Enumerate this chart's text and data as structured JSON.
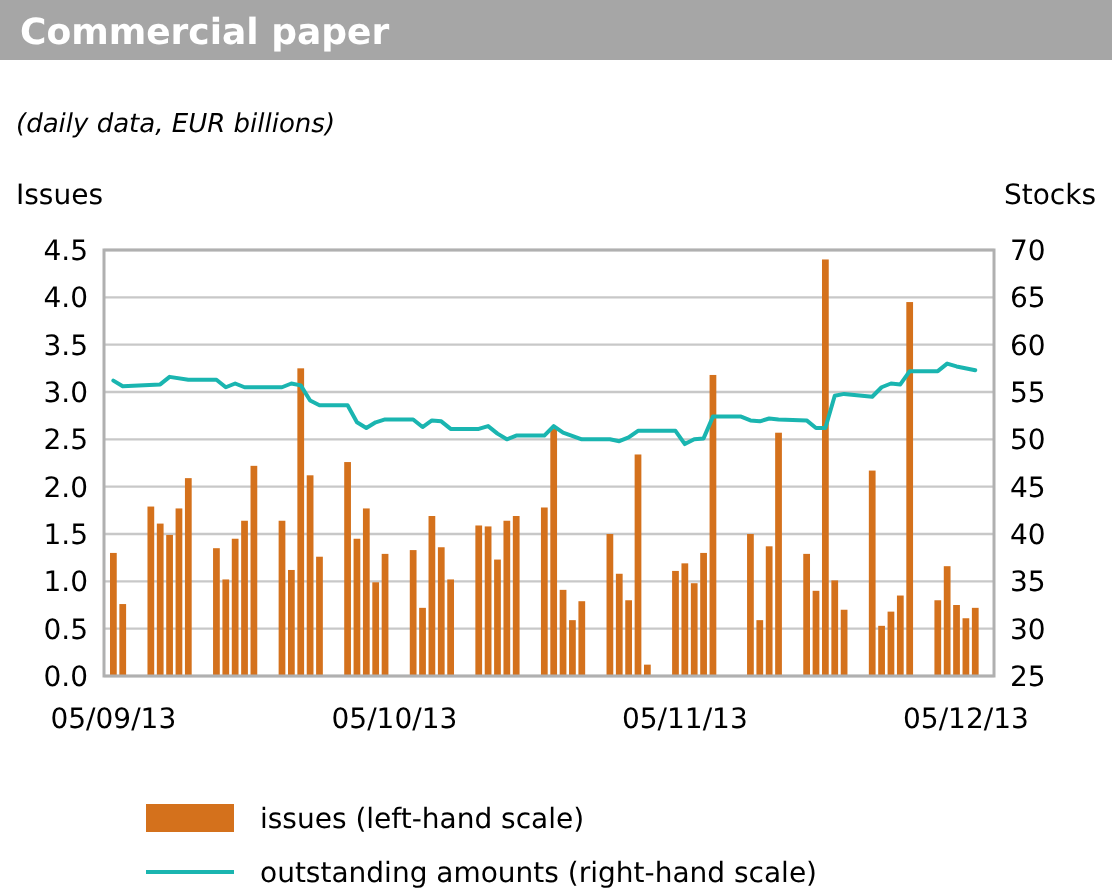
{
  "chart_data": {
    "type": "bar",
    "title": "Commercial paper",
    "subtitle": "(daily data, EUR billions)",
    "ylabel": "Issues",
    "y2label": "Stocks",
    "xlim": [
      "2013-09-04",
      "2013-12-08"
    ],
    "xticks": [
      {
        "value": "2013-09-05",
        "label": "05/09/13"
      },
      {
        "value": "2013-10-05",
        "label": "05/10/13"
      },
      {
        "value": "2013-11-05",
        "label": "05/11/13"
      },
      {
        "value": "2013-12-05",
        "label": "05/12/13"
      }
    ],
    "ylim": [
      0,
      4.5
    ],
    "yticks": [
      {
        "value": 0,
        "label": "0.0"
      },
      {
        "value": 0.5,
        "label": "0.5"
      },
      {
        "value": 1,
        "label": "1.0"
      },
      {
        "value": 1.5,
        "label": "1.5"
      },
      {
        "value": 2,
        "label": "2.0"
      },
      {
        "value": 2.5,
        "label": "2.5"
      },
      {
        "value": 3,
        "label": "3.0"
      },
      {
        "value": 3.5,
        "label": "3.5"
      },
      {
        "value": 4,
        "label": "4.0"
      },
      {
        "value": 4.5,
        "label": "4.5"
      }
    ],
    "y2lim": [
      25,
      70
    ],
    "y2ticks": [
      25,
      30,
      35,
      40,
      45,
      50,
      55,
      60,
      65,
      70
    ],
    "grid": "y",
    "legend": "bottom",
    "series": [
      {
        "name": "issues (left-hand scale)",
        "color": "#d4711c",
        "x": [
          "2013-09-05",
          "2013-09-06",
          "2013-09-09",
          "2013-09-10",
          "2013-09-11",
          "2013-09-12",
          "2013-09-13",
          "2013-09-16",
          "2013-09-17",
          "2013-09-18",
          "2013-09-19",
          "2013-09-20",
          "2013-09-23",
          "2013-09-24",
          "2013-09-25",
          "2013-09-26",
          "2013-09-27",
          "2013-09-30",
          "2013-10-01",
          "2013-10-02",
          "2013-10-03",
          "2013-10-04",
          "2013-10-07",
          "2013-10-08",
          "2013-10-09",
          "2013-10-10",
          "2013-10-11",
          "2013-10-14",
          "2013-10-15",
          "2013-10-16",
          "2013-10-17",
          "2013-10-18",
          "2013-10-21",
          "2013-10-22",
          "2013-10-23",
          "2013-10-24",
          "2013-10-25",
          "2013-10-28",
          "2013-10-29",
          "2013-10-30",
          "2013-10-31",
          "2013-11-01",
          "2013-11-04",
          "2013-11-05",
          "2013-11-06",
          "2013-11-07",
          "2013-11-08",
          "2013-11-12",
          "2013-11-13",
          "2013-11-14",
          "2013-11-15",
          "2013-11-18",
          "2013-11-19",
          "2013-11-20",
          "2013-11-21",
          "2013-11-22",
          "2013-11-25",
          "2013-11-26",
          "2013-11-27",
          "2013-11-28",
          "2013-11-29",
          "2013-12-02",
          "2013-12-03",
          "2013-12-04",
          "2013-12-05",
          "2013-12-06"
        ],
        "values": [
          1.3,
          0.76,
          1.79,
          1.61,
          1.49,
          1.77,
          2.09,
          1.35,
          1.02,
          1.45,
          1.64,
          2.22,
          1.64,
          1.12,
          3.25,
          2.12,
          1.26,
          2.26,
          1.45,
          1.77,
          0.99,
          1.29,
          1.33,
          0.72,
          1.69,
          1.36,
          1.02,
          1.59,
          1.58,
          1.23,
          1.64,
          1.69,
          1.78,
          2.61,
          0.91,
          0.59,
          0.79,
          1.5,
          1.08,
          0.8,
          2.34,
          0.12,
          1.11,
          1.19,
          0.98,
          1.3,
          3.18,
          1.5,
          0.59,
          1.37,
          2.57,
          1.29,
          0.9,
          4.4,
          1.01,
          0.7,
          2.17,
          0.53,
          0.68,
          0.85,
          3.95,
          0.8,
          1.16,
          0.75,
          0.61,
          0.72
        ]
      },
      {
        "type": "line",
        "name": "outstanding amounts (right-hand scale)",
        "color": "#1ab5b0",
        "axis": "y2",
        "x": [
          "2013-09-05",
          "2013-09-06",
          "2013-09-10",
          "2013-09-11",
          "2013-09-13",
          "2013-09-16",
          "2013-09-17",
          "2013-09-18",
          "2013-09-19",
          "2013-09-23",
          "2013-09-24",
          "2013-09-25",
          "2013-09-26",
          "2013-09-27",
          "2013-09-30",
          "2013-10-01",
          "2013-10-02",
          "2013-10-03",
          "2013-10-04",
          "2013-10-07",
          "2013-10-08",
          "2013-10-09",
          "2013-10-10",
          "2013-10-11",
          "2013-10-14",
          "2013-10-15",
          "2013-10-16",
          "2013-10-17",
          "2013-10-18",
          "2013-10-21",
          "2013-10-22",
          "2013-10-23",
          "2013-10-25",
          "2013-10-28",
          "2013-10-29",
          "2013-10-30",
          "2013-10-31",
          "2013-11-04",
          "2013-11-05",
          "2013-11-06",
          "2013-11-07",
          "2013-11-08",
          "2013-11-11",
          "2013-11-12",
          "2013-11-13",
          "2013-11-14",
          "2013-11-15",
          "2013-11-18",
          "2013-11-19",
          "2013-11-20",
          "2013-11-21",
          "2013-11-22",
          "2013-11-25",
          "2013-11-26",
          "2013-11-27",
          "2013-11-28",
          "2013-11-29",
          "2013-12-02",
          "2013-12-03",
          "2013-12-04",
          "2013-12-06"
        ],
        "values": [
          56.2,
          55.6,
          55.8,
          56.6,
          56.3,
          56.3,
          55.5,
          55.9,
          55.5,
          55.5,
          55.9,
          55.7,
          54.1,
          53.6,
          53.6,
          51.8,
          51.2,
          51.8,
          52.1,
          52.1,
          51.3,
          52.0,
          51.9,
          51.1,
          51.1,
          51.4,
          50.6,
          50.0,
          50.4,
          50.4,
          51.4,
          50.7,
          50.0,
          50.0,
          49.8,
          50.2,
          50.9,
          50.9,
          49.5,
          50.0,
          50.1,
          52.4,
          52.4,
          52.0,
          51.9,
          52.2,
          52.1,
          52.0,
          51.2,
          51.2,
          54.6,
          54.8,
          54.5,
          55.5,
          55.9,
          55.8,
          57.2,
          57.2,
          58.0,
          57.7,
          57.3
        ]
      }
    ]
  }
}
